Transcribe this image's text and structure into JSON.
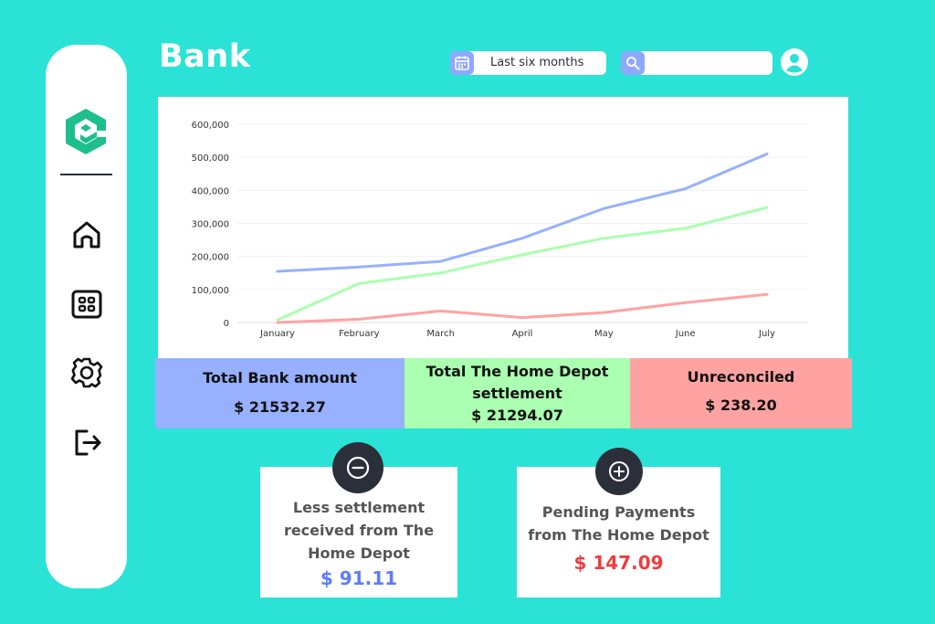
{
  "header": {
    "title": "Bank"
  },
  "period_selector": {
    "icon": "calendar-icon",
    "label": "Last six months"
  },
  "search": {
    "icon": "search-icon",
    "placeholder": "",
    "value": ""
  },
  "sidebar": {
    "logo": "app-logo",
    "items": [
      {
        "name": "home",
        "icon": "home-icon"
      },
      {
        "name": "dashboard",
        "icon": "grid-icon"
      },
      {
        "name": "settings",
        "icon": "gear-icon"
      },
      {
        "name": "logout",
        "icon": "logout-icon"
      }
    ]
  },
  "colors": {
    "background": "#2ae3d6",
    "blue": "#97b0ff",
    "green": "#aaffb0",
    "red": "#ffa2a2",
    "dark": "#2b2f3a",
    "amount_blue": "#5b7cff",
    "amount_red": "#f03c3c",
    "logo_green": "#1dbf8a"
  },
  "chart_data": {
    "type": "line",
    "categories": [
      "January",
      "February",
      "March",
      "April",
      "May",
      "June",
      "July"
    ],
    "ylim": [
      0,
      600000
    ],
    "yticks": [
      "0",
      "100,000",
      "200,000",
      "300,000",
      "400,000",
      "500,000",
      "600,000"
    ],
    "grid": true,
    "series": [
      {
        "color": "#97b0ff",
        "values": [
          155000,
          168000,
          185000,
          255000,
          345000,
          405000,
          510000
        ]
      },
      {
        "color": "#aaffb0",
        "values": [
          8000,
          118000,
          150000,
          205000,
          255000,
          285000,
          348000
        ]
      },
      {
        "color": "#ffa2a2",
        "values": [
          0,
          10000,
          35000,
          15000,
          30000,
          60000,
          85000
        ]
      }
    ]
  },
  "stats": {
    "bank": {
      "label": "Total Bank amount",
      "value": "$ 21532.27"
    },
    "depot": {
      "label_line1": "Total The Home Depot",
      "label_line2": "settlement",
      "value": "$ 21294.07"
    },
    "unreconciled": {
      "label": "Unreconciled",
      "value": "$ 238.20"
    }
  },
  "cards": {
    "less": {
      "icon": "minus-circle-icon",
      "line1": "Less settlement",
      "line2": "received from The",
      "line3": "Home Depot",
      "amount": "$ 91.11"
    },
    "pending": {
      "icon": "plus-circle-icon",
      "line1": "Pending Payments",
      "line2": "from The Home Depot",
      "amount": "$ 147.09"
    }
  }
}
